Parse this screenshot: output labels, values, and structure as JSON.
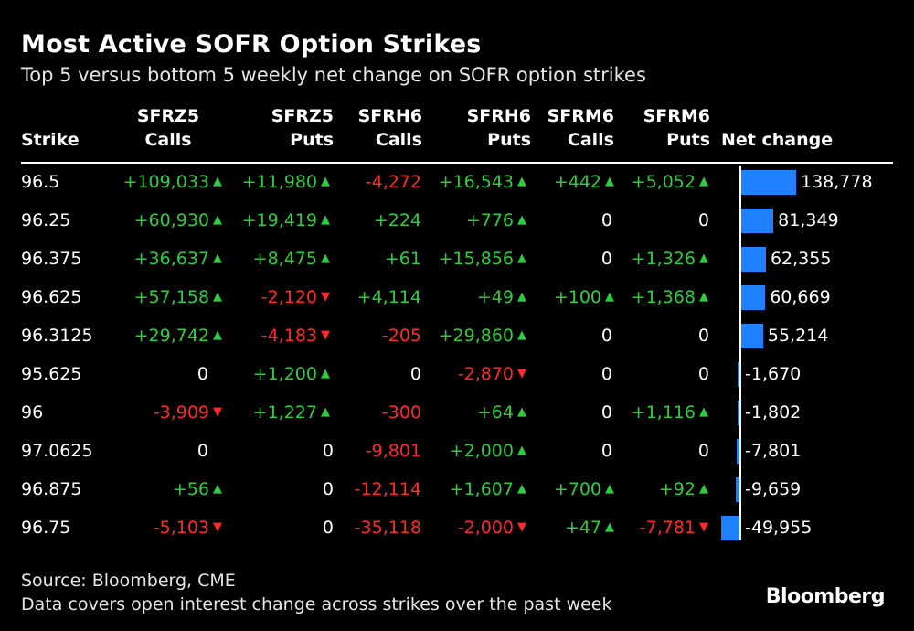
{
  "title": "Most Active SOFR Option Strikes",
  "subtitle": "Top 5 versus bottom 5 weekly net change on SOFR option strikes",
  "columns": [
    {
      "line1": "",
      "line2": "Strike"
    },
    {
      "line1": "SFRZ5",
      "line2": "Calls"
    },
    {
      "line1": "SFRZ5",
      "line2": "Puts"
    },
    {
      "line1": "SFRH6",
      "line2": "Calls"
    },
    {
      "line1": "SFRH6",
      "line2": "Puts"
    },
    {
      "line1": "SFRM6",
      "line2": "Calls"
    },
    {
      "line1": "SFRM6",
      "line2": "Puts"
    },
    {
      "line1": "",
      "line2": "Net change"
    }
  ],
  "chart_data": {
    "type": "table",
    "title": "Most Active SOFR Option Strikes",
    "subtitle": "Top 5 versus bottom 5 weekly net change on SOFR option strikes",
    "columns": [
      "Strike",
      "SFRZ5 Calls",
      "SFRZ5 Puts",
      "SFRH6 Calls",
      "SFRH6 Puts",
      "SFRM6 Calls",
      "SFRM6 Puts",
      "Net change"
    ],
    "rows": [
      {
        "strike": "96.5",
        "cells": [
          "+109,033",
          "+11,980",
          "-4,272",
          "+16,543",
          "+442",
          "+5,052"
        ],
        "net": 138778,
        "net_label": "138,778"
      },
      {
        "strike": "96.25",
        "cells": [
          "+60,930",
          "+19,419",
          "+224",
          "+776",
          "0",
          "0"
        ],
        "net": 81349,
        "net_label": "81,349"
      },
      {
        "strike": "96.375",
        "cells": [
          "+36,637",
          "+8,475",
          "+61",
          "+15,856",
          "0",
          "+1,326"
        ],
        "net": 62355,
        "net_label": "62,355"
      },
      {
        "strike": "96.625",
        "cells": [
          "+57,158",
          "-2,120",
          "+4,114",
          "+49",
          "+100",
          "+1,368"
        ],
        "net": 60669,
        "net_label": "60,669"
      },
      {
        "strike": "96.3125",
        "cells": [
          "+29,742",
          "-4,183",
          "-205",
          "+29,860",
          "0",
          "0"
        ],
        "net": 55214,
        "net_label": "55,214"
      },
      {
        "strike": "95.625",
        "cells": [
          "0",
          "+1,200",
          "0",
          "-2,870",
          "0",
          "0"
        ],
        "net": -1670,
        "net_label": "-1,670"
      },
      {
        "strike": "96",
        "cells": [
          "-3,909",
          "+1,227",
          "-300",
          "+64",
          "0",
          "+1,116"
        ],
        "net": -1802,
        "net_label": "-1,802"
      },
      {
        "strike": "97.0625",
        "cells": [
          "0",
          "0",
          "-9,801",
          "+2,000",
          "0",
          "0"
        ],
        "net": -7801,
        "net_label": "-7,801"
      },
      {
        "strike": "96.875",
        "cells": [
          "+56",
          "0",
          "-12,114",
          "+1,607",
          "+700",
          "+92"
        ],
        "net": -9659,
        "net_label": "-9,659"
      },
      {
        "strike": "96.75",
        "cells": [
          "-5,103",
          "0",
          "-35,118",
          "-2,000",
          "+47",
          "-7,781"
        ],
        "net": -49955,
        "net_label": "-49,955"
      }
    ]
  },
  "colors": {
    "positive": "#2ecc40",
    "negative": "#ff2b2b",
    "bar": "#1e82ff"
  },
  "footer": {
    "source": "Source: Bloomberg, CME",
    "note": "Data covers open interest change across strikes over the past week"
  },
  "logo": "Bloomberg"
}
